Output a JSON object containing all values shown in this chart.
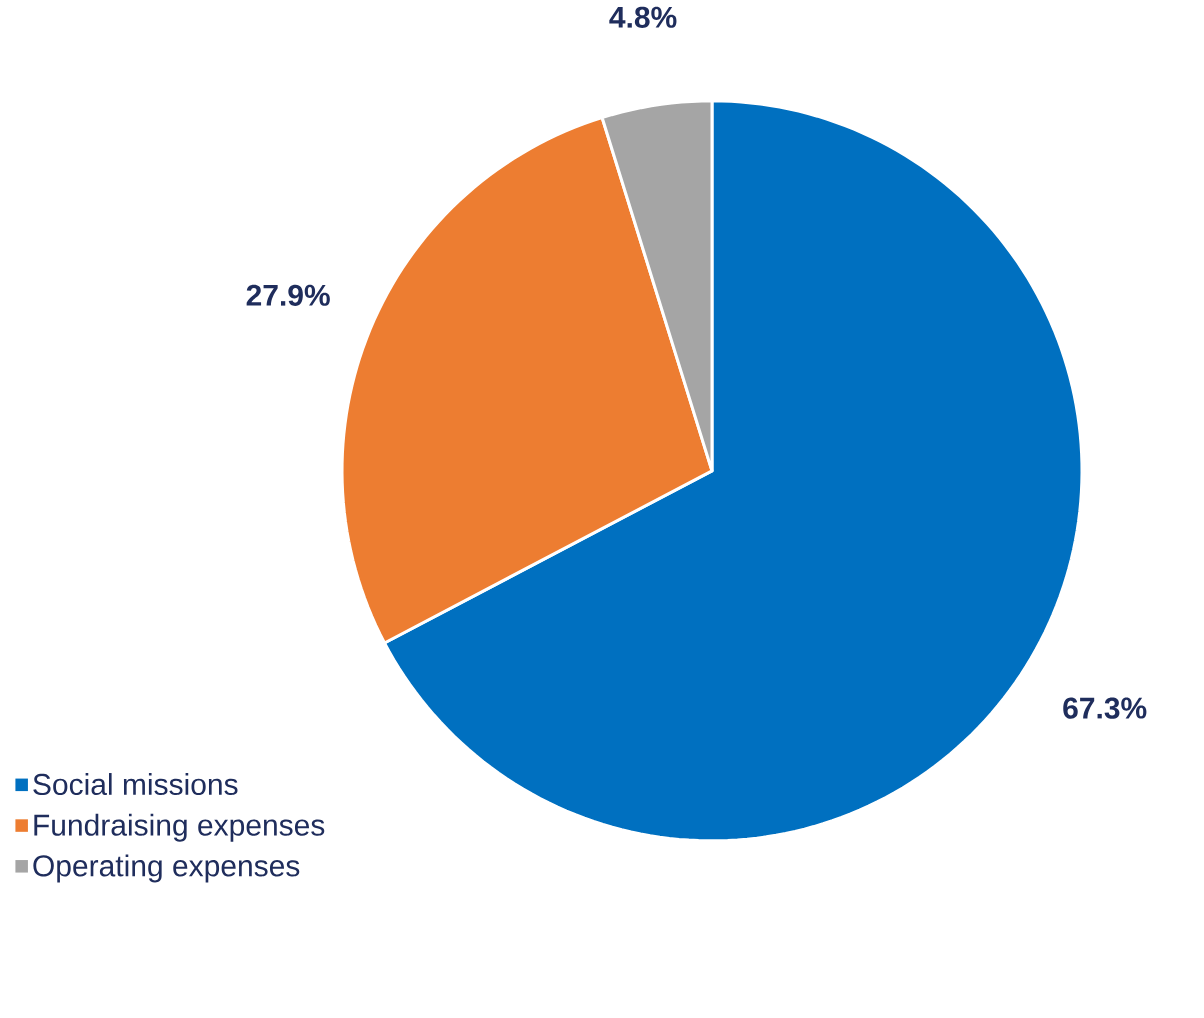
{
  "chart_data": {
    "type": "pie",
    "categories": [
      "Social missions",
      "Fundraising expenses",
      "Operating expenses"
    ],
    "values": [
      67.3,
      27.9,
      4.8
    ],
    "value_labels": [
      "67.3%",
      "27.9%",
      "4.8%"
    ],
    "colors": [
      "#0070c0",
      "#ed7d31",
      "#a5a5a5"
    ],
    "legend": "bottom left"
  }
}
